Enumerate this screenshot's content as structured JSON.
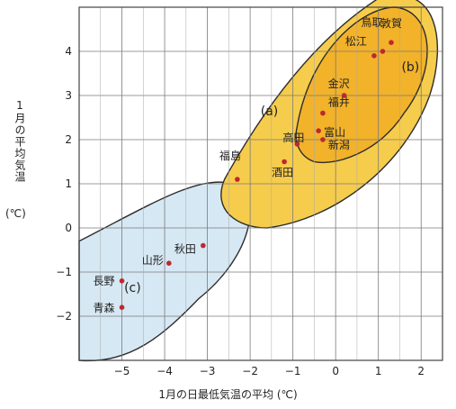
{
  "chart_data": {
    "type": "scatter",
    "title": "",
    "xlabel": "1月の日最低気温の平均",
    "xunit": "(℃)",
    "ylabel": "1月の平均気温",
    "yunit": "(℃)",
    "xlim": [
      -6,
      2.5
    ],
    "ylim": [
      -3,
      5
    ],
    "xticks": [
      -5,
      -4,
      -3,
      -2,
      -1,
      0,
      1,
      2
    ],
    "yticks": [
      -2,
      -1,
      0,
      1,
      2,
      3,
      4
    ],
    "xtick_labels": [
      "−5",
      "−4",
      "−3",
      "−2",
      "−1",
      "0",
      "1",
      "2"
    ],
    "ytick_labels": [
      "−2",
      "−1",
      "0",
      "1",
      "2",
      "3",
      "4"
    ],
    "grid": true,
    "points": [
      {
        "label": "鳥取",
        "x": 1.1,
        "y": 4.0
      },
      {
        "label": "敦賀",
        "x": 1.3,
        "y": 4.2
      },
      {
        "label": "松江",
        "x": 0.9,
        "y": 3.9
      },
      {
        "label": "金沢",
        "x": 0.2,
        "y": 3.0
      },
      {
        "label": "福井",
        "x": -0.3,
        "y": 2.6
      },
      {
        "label": "富山",
        "x": -0.4,
        "y": 2.2
      },
      {
        "label": "新潟",
        "x": -0.3,
        "y": 2.0
      },
      {
        "label": "高田",
        "x": -0.9,
        "y": 1.9
      },
      {
        "label": "酒田",
        "x": -1.2,
        "y": 1.5
      },
      {
        "label": "福島",
        "x": -2.3,
        "y": 1.1
      },
      {
        "label": "秋田",
        "x": -3.1,
        "y": -0.4
      },
      {
        "label": "山形",
        "x": -3.9,
        "y": -0.8
      },
      {
        "label": "長野",
        "x": -5.0,
        "y": -1.2
      },
      {
        "label": "青森",
        "x": -5.0,
        "y": -1.8
      }
    ],
    "regions": [
      {
        "label": "(a)",
        "color": "#f6cc4c"
      },
      {
        "label": "(b)",
        "color": "#f2b22a"
      },
      {
        "label": "(c)",
        "color": "#d6e8f3"
      }
    ],
    "point_color": "#c0272d"
  }
}
